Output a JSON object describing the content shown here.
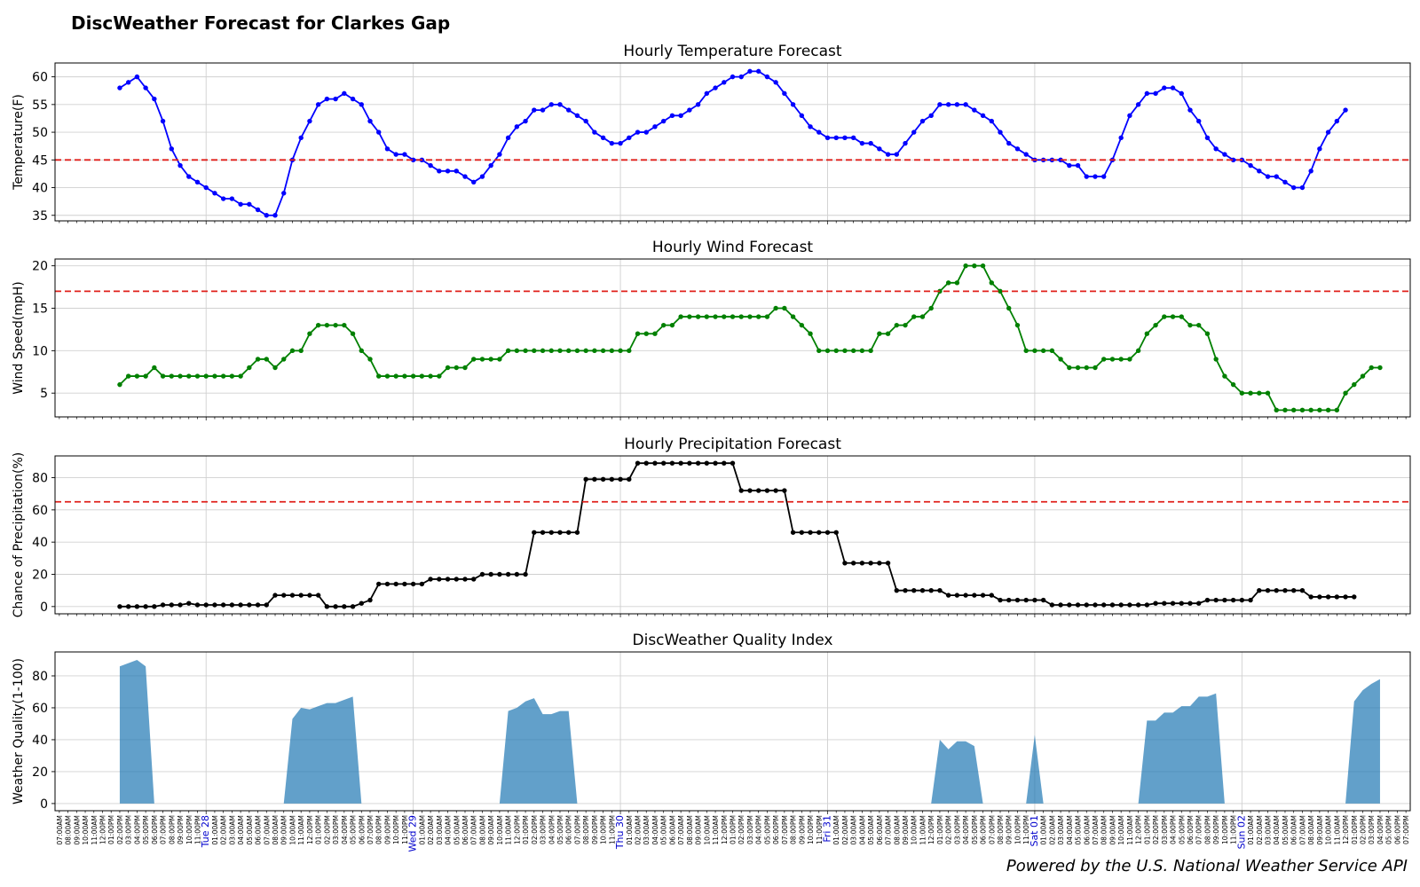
{
  "page": {
    "title": "DiscWeather Forecast for Clarkes Gap",
    "credit": "Powered by the U.S. National Weather Service API"
  },
  "colors": {
    "temperature": "#0000ff",
    "wind": "#008000",
    "precip": "#000000",
    "quality": "#1f77b4",
    "threshold": "#e0201b",
    "day_label": "#0000cc",
    "grid": "#d0d0d0"
  },
  "x_axis": {
    "hour_labels": [
      "07:00AM",
      "08:00AM",
      "09:00AM",
      "10:00AM",
      "11:00AM",
      "12:00PM",
      "01:00PM",
      "02:00PM",
      "03:00PM",
      "04:00PM",
      "05:00PM",
      "06:00PM",
      "07:00PM",
      "08:00PM",
      "09:00PM",
      "10:00PM",
      "11:00PM",
      "Tue 28",
      "01:00AM",
      "02:00AM",
      "03:00AM",
      "04:00AM",
      "05:00AM",
      "06:00AM",
      "07:00AM",
      "08:00AM",
      "09:00AM",
      "10:00AM",
      "11:00AM",
      "12:00PM",
      "01:00PM",
      "02:00PM",
      "03:00PM",
      "04:00PM",
      "05:00PM",
      "06:00PM",
      "07:00PM",
      "08:00PM",
      "09:00PM",
      "10:00PM",
      "11:00PM",
      "Wed 29",
      "01:00AM",
      "02:00AM",
      "03:00AM",
      "04:00AM",
      "05:00AM",
      "06:00AM",
      "07:00AM",
      "08:00AM",
      "09:00AM",
      "10:00AM",
      "11:00AM",
      "12:00PM",
      "01:00PM",
      "02:00PM",
      "03:00PM",
      "04:00PM",
      "05:00PM",
      "06:00PM",
      "07:00PM",
      "08:00PM",
      "09:00PM",
      "10:00PM",
      "11:00PM",
      "Thu 30",
      "01:00AM",
      "02:00AM",
      "03:00AM",
      "04:00AM",
      "05:00AM",
      "06:00AM",
      "07:00AM",
      "08:00AM",
      "09:00AM",
      "10:00AM",
      "11:00AM",
      "12:00PM",
      "01:00PM",
      "02:00PM",
      "03:00PM",
      "04:00PM",
      "05:00PM",
      "06:00PM",
      "07:00PM",
      "08:00PM",
      "09:00PM",
      "10:00PM",
      "11:00PM",
      "Fri 31",
      "01:00AM",
      "02:00AM",
      "03:00AM",
      "04:00AM",
      "05:00AM",
      "06:00AM",
      "07:00AM",
      "08:00AM",
      "09:00AM",
      "10:00AM",
      "11:00AM",
      "12:00PM",
      "01:00PM",
      "02:00PM",
      "03:00PM",
      "04:00PM",
      "05:00PM",
      "06:00PM",
      "07:00PM",
      "08:00PM",
      "09:00PM",
      "10:00PM",
      "11:00PM",
      "Sat 01",
      "01:00AM",
      "02:00AM",
      "03:00AM",
      "04:00AM",
      "05:00AM",
      "06:00AM",
      "07:00AM",
      "08:00AM",
      "09:00AM",
      "10:00AM",
      "11:00AM",
      "12:00PM",
      "01:00PM",
      "02:00PM",
      "03:00PM",
      "04:00PM",
      "05:00PM",
      "06:00PM",
      "07:00PM",
      "08:00PM",
      "09:00PM",
      "10:00PM",
      "11:00PM",
      "Sun 02",
      "01:00AM",
      "02:00AM",
      "03:00AM",
      "04:00AM",
      "05:00AM",
      "06:00AM",
      "07:00AM",
      "08:00AM",
      "09:00AM",
      "10:00AM",
      "11:00AM",
      "12:00PM",
      "01:00PM",
      "02:00PM",
      "03:00PM",
      "04:00PM",
      "05:00PM",
      "06:00PM",
      "07:00PM"
    ],
    "day_markers": [
      "Tue 28",
      "Wed 29",
      "Thu 30",
      "Fri 31",
      "Sat 01",
      "Sun 02"
    ],
    "first_point_label": "02:00PM"
  },
  "chart_data": [
    {
      "type": "line",
      "title": "Hourly Temperature Forecast",
      "ylabel": "Temperature(F)",
      "xlabel": "",
      "ylim": [
        34,
        62.5
      ],
      "yticks": [
        35,
        40,
        45,
        50,
        55,
        60
      ],
      "threshold": 45,
      "grid": true,
      "values": [
        58,
        59,
        60,
        58,
        56,
        52,
        47,
        44,
        42,
        41,
        40,
        39,
        38,
        38,
        37,
        37,
        36,
        35,
        35,
        39,
        45,
        49,
        52,
        55,
        56,
        56,
        57,
        56,
        55,
        52,
        50,
        47,
        46,
        46,
        45,
        45,
        44,
        43,
        43,
        43,
        42,
        41,
        42,
        44,
        46,
        49,
        51,
        52,
        54,
        54,
        55,
        55,
        54,
        53,
        52,
        50,
        49,
        48,
        48,
        49,
        50,
        50,
        51,
        52,
        53,
        53,
        54,
        55,
        57,
        58,
        59,
        60,
        60,
        61,
        61,
        60,
        59,
        57,
        55,
        53,
        51,
        50,
        49,
        49,
        49,
        49,
        48,
        48,
        47,
        46,
        46,
        48,
        50,
        52,
        53,
        55,
        55,
        55,
        55,
        54,
        53,
        52,
        50,
        48,
        47,
        46,
        45,
        45,
        45,
        45,
        44,
        44,
        42,
        42,
        42,
        45,
        49,
        53,
        55,
        57,
        57,
        58,
        58,
        57,
        54,
        52,
        49,
        47,
        46,
        45,
        45,
        44,
        43,
        42,
        42,
        41,
        40,
        40,
        43,
        47,
        50,
        52,
        54
      ]
    },
    {
      "type": "line",
      "title": "Hourly Wind Forecast",
      "ylabel": "Wind Speed(mpH)",
      "xlabel": "",
      "ylim": [
        2.2,
        20.8
      ],
      "yticks": [
        5,
        10,
        15,
        20
      ],
      "threshold": 17,
      "grid": true,
      "values": [
        6,
        7,
        7,
        7,
        8,
        7,
        7,
        7,
        7,
        7,
        7,
        7,
        7,
        7,
        7,
        8,
        9,
        9,
        8,
        9,
        10,
        10,
        12,
        13,
        13,
        13,
        13,
        12,
        10,
        9,
        7,
        7,
        7,
        7,
        7,
        7,
        7,
        7,
        8,
        8,
        8,
        9,
        9,
        9,
        9,
        10,
        10,
        10,
        10,
        10,
        10,
        10,
        10,
        10,
        10,
        10,
        10,
        10,
        10,
        10,
        12,
        12,
        12,
        13,
        13,
        14,
        14,
        14,
        14,
        14,
        14,
        14,
        14,
        14,
        14,
        14,
        15,
        15,
        14,
        13,
        12,
        10,
        10,
        10,
        10,
        10,
        10,
        10,
        12,
        12,
        13,
        13,
        14,
        14,
        15,
        17,
        18,
        18,
        20,
        20,
        20,
        18,
        17,
        15,
        13,
        10,
        10,
        10,
        10,
        9,
        8,
        8,
        8,
        8,
        9,
        9,
        9,
        9,
        10,
        12,
        13,
        14,
        14,
        14,
        13,
        13,
        12,
        9,
        7,
        6,
        5,
        5,
        5,
        5,
        3,
        3,
        3,
        3,
        3,
        3,
        3,
        3,
        5,
        6,
        7,
        8,
        8
      ]
    },
    {
      "type": "line",
      "title": "Hourly Precipitation Forecast",
      "ylabel": "Chance of Precipitation(%)",
      "xlabel": "",
      "ylim": [
        -4.5,
        93.5
      ],
      "yticks": [
        0,
        20,
        40,
        60,
        80
      ],
      "threshold": 65,
      "grid": true,
      "values": [
        0,
        0,
        0,
        0,
        0,
        1,
        1,
        1,
        2,
        1,
        1,
        1,
        1,
        1,
        1,
        1,
        1,
        1,
        7,
        7,
        7,
        7,
        7,
        7,
        0,
        0,
        0,
        0,
        2,
        4,
        14,
        14,
        14,
        14,
        14,
        14,
        17,
        17,
        17,
        17,
        17,
        17,
        20,
        20,
        20,
        20,
        20,
        20,
        46,
        46,
        46,
        46,
        46,
        46,
        79,
        79,
        79,
        79,
        79,
        79,
        89,
        89,
        89,
        89,
        89,
        89,
        89,
        89,
        89,
        89,
        89,
        89,
        72,
        72,
        72,
        72,
        72,
        72,
        46,
        46,
        46,
        46,
        46,
        46,
        27,
        27,
        27,
        27,
        27,
        27,
        10,
        10,
        10,
        10,
        10,
        10,
        7,
        7,
        7,
        7,
        7,
        7,
        4,
        4,
        4,
        4,
        4,
        4,
        1,
        1,
        1,
        1,
        1,
        1,
        1,
        1,
        1,
        1,
        1,
        1,
        2,
        2,
        2,
        2,
        2,
        2,
        4,
        4,
        4,
        4,
        4,
        4,
        10,
        10,
        10,
        10,
        10,
        10,
        6,
        6,
        6,
        6,
        6,
        6
      ]
    },
    {
      "type": "area",
      "title": "DiscWeather Quality Index",
      "ylabel": "Weather Quality(1-100)",
      "xlabel": "",
      "ylim": [
        -4.5,
        95
      ],
      "yticks": [
        0,
        20,
        40,
        60,
        80
      ],
      "grid": true,
      "values": [
        86,
        88,
        90,
        86,
        0,
        0,
        0,
        0,
        0,
        0,
        0,
        0,
        0,
        0,
        0,
        0,
        0,
        0,
        0,
        0,
        53,
        60,
        59,
        61,
        63,
        63,
        65,
        67,
        0,
        0,
        0,
        0,
        0,
        0,
        0,
        0,
        0,
        0,
        0,
        0,
        0,
        0,
        0,
        0,
        0,
        58,
        60,
        64,
        66,
        56,
        56,
        58,
        58,
        0,
        0,
        0,
        0,
        0,
        0,
        0,
        0,
        0,
        0,
        0,
        0,
        0,
        0,
        0,
        0,
        0,
        0,
        0,
        0,
        0,
        0,
        0,
        0,
        0,
        0,
        0,
        0,
        0,
        0,
        0,
        0,
        0,
        0,
        0,
        0,
        0,
        0,
        0,
        0,
        0,
        0,
        40,
        34,
        39,
        39,
        36,
        0,
        0,
        0,
        0,
        0,
        0,
        43,
        0,
        0,
        0,
        0,
        0,
        0,
        0,
        0,
        0,
        0,
        0,
        0,
        52,
        52,
        57,
        57,
        61,
        61,
        67,
        67,
        69,
        0,
        0,
        0,
        0,
        0,
        0,
        0,
        0,
        0,
        0,
        0,
        0,
        0,
        0,
        0,
        64,
        71,
        75,
        78
      ]
    }
  ]
}
